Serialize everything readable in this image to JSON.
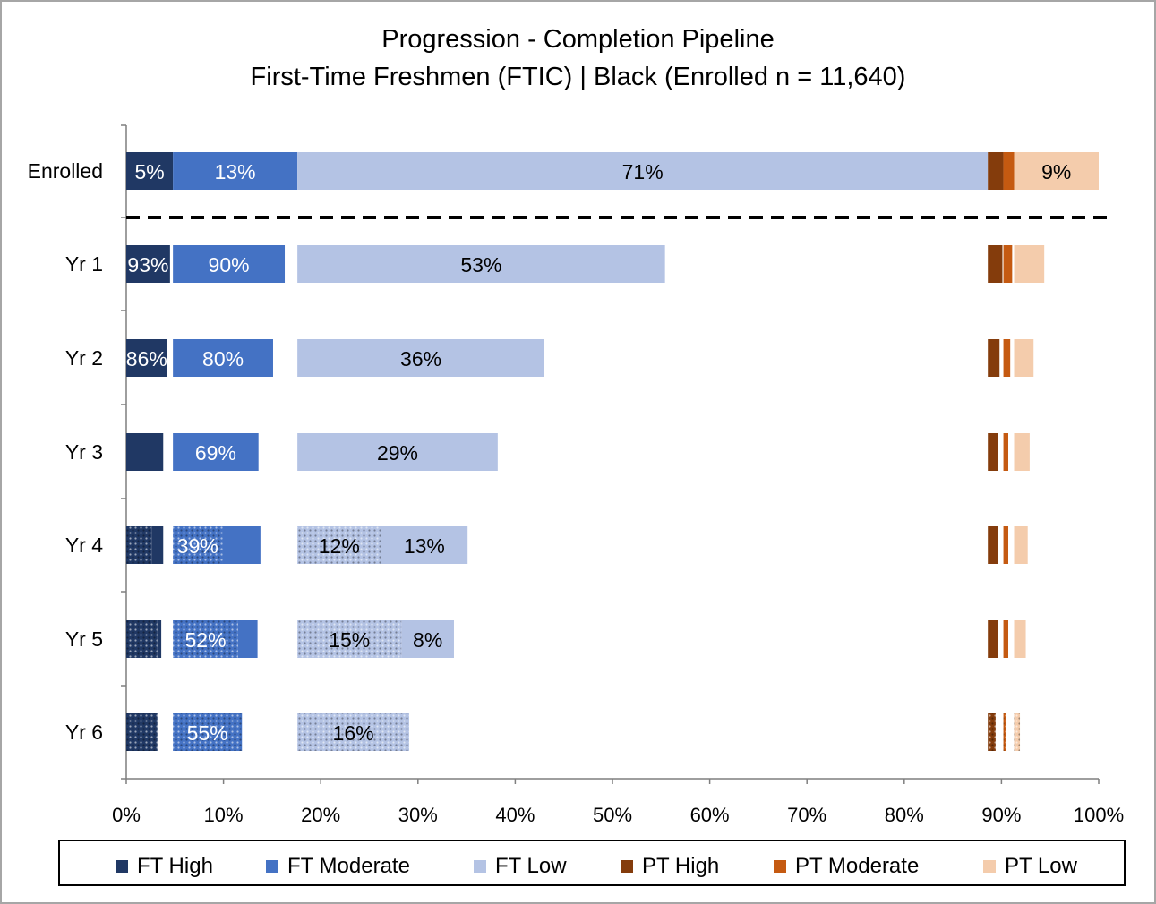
{
  "title": {
    "line1": "Progression - Completion Pipeline",
    "line2": "First-Time Freshmen (FTIC)  | Black (Enrolled n = 11,640)"
  },
  "colors": {
    "ft_high": "#203864",
    "ft_moderate": "#4472c4",
    "ft_low": "#b4c3e4",
    "pt_high": "#843c0c",
    "pt_moderate": "#c55a11",
    "pt_low": "#f4ccac"
  },
  "chart_data": {
    "type": "bar",
    "orientation": "horizontal",
    "stacked": true,
    "xlim": [
      0,
      100
    ],
    "x_ticks": [
      "0%",
      "10%",
      "20%",
      "30%",
      "40%",
      "50%",
      "60%",
      "70%",
      "80%",
      "90%",
      "100%"
    ],
    "categories": [
      "Enrolled",
      "Yr 1",
      "Yr 2",
      "Yr 3",
      "Yr 4",
      "Yr 5",
      "Yr 6"
    ],
    "legend_position": "bottom",
    "legend": [
      "FT High",
      "FT Moderate",
      "FT Low",
      "PT High",
      "PT Moderate",
      "PT Low"
    ],
    "groups": [
      {
        "name": "FT High",
        "start": 0,
        "width": 4.8
      },
      {
        "name": "FT Moderate",
        "start": 4.8,
        "width": 12.8
      },
      {
        "name": "FT Low",
        "start": 17.6,
        "width": 71.0
      },
      {
        "name": "PT High",
        "start": 88.6,
        "width": 1.6
      },
      {
        "name": "PT Moderate",
        "start": 90.2,
        "width": 1.1
      },
      {
        "name": "PT Low",
        "start": 91.3,
        "width": 8.7
      }
    ],
    "rows": [
      {
        "category": "Enrolled",
        "segments": [
          {
            "group": "FT High",
            "style": "solid",
            "length": 4.8,
            "label": "5%"
          },
          {
            "group": "FT Moderate",
            "style": "solid",
            "length": 12.8,
            "label": "13%"
          },
          {
            "group": "FT Low",
            "style": "solid",
            "length": 71.0,
            "label": "71%"
          },
          {
            "group": "PT High",
            "style": "solid",
            "length": 1.6,
            "label": ""
          },
          {
            "group": "PT Moderate",
            "style": "solid",
            "length": 1.1,
            "label": ""
          },
          {
            "group": "PT Low",
            "style": "solid",
            "length": 8.7,
            "label": "9%"
          }
        ]
      },
      {
        "category": "Yr 1",
        "segments": [
          {
            "group": "FT High",
            "style": "solid",
            "length": 4.5,
            "label": "93%"
          },
          {
            "group": "FT Moderate",
            "style": "solid",
            "length": 11.5,
            "label": "90%"
          },
          {
            "group": "FT Low",
            "style": "solid",
            "length": 37.8,
            "label": "53%"
          },
          {
            "group": "PT High",
            "style": "solid",
            "length": 1.5,
            "label": ""
          },
          {
            "group": "PT Moderate",
            "style": "solid",
            "length": 0.9,
            "label": ""
          },
          {
            "group": "PT Low",
            "style": "solid",
            "length": 3.1,
            "label": ""
          }
        ]
      },
      {
        "category": "Yr 2",
        "segments": [
          {
            "group": "FT High",
            "style": "solid",
            "length": 4.2,
            "label": "86%"
          },
          {
            "group": "FT Moderate",
            "style": "solid",
            "length": 10.3,
            "label": "80%"
          },
          {
            "group": "FT Low",
            "style": "solid",
            "length": 25.4,
            "label": "36%"
          },
          {
            "group": "PT High",
            "style": "solid",
            "length": 1.2,
            "label": ""
          },
          {
            "group": "PT Moderate",
            "style": "solid",
            "length": 0.7,
            "label": ""
          },
          {
            "group": "PT Low",
            "style": "solid",
            "length": 2.0,
            "label": ""
          }
        ]
      },
      {
        "category": "Yr 3",
        "segments": [
          {
            "group": "FT High",
            "style": "solid",
            "length": 3.8,
            "label": ""
          },
          {
            "group": "FT Moderate",
            "style": "solid",
            "length": 8.8,
            "label": "69%"
          },
          {
            "group": "FT Low",
            "style": "solid",
            "length": 20.6,
            "label": "29%"
          },
          {
            "group": "PT High",
            "style": "solid",
            "length": 1.0,
            "label": ""
          },
          {
            "group": "PT Moderate",
            "style": "solid",
            "length": 0.5,
            "label": ""
          },
          {
            "group": "PT Low",
            "style": "solid",
            "length": 1.6,
            "label": ""
          }
        ]
      },
      {
        "category": "Yr 4",
        "segments": [
          {
            "group": "FT High",
            "style": "hatched",
            "length": 2.6,
            "label": ""
          },
          {
            "group": "FT High",
            "style": "solid",
            "length": 1.2,
            "label": ""
          },
          {
            "group": "FT Moderate",
            "style": "hatched",
            "length": 5.1,
            "label": "39%"
          },
          {
            "group": "FT Moderate",
            "style": "solid",
            "length": 3.9,
            "label": ""
          },
          {
            "group": "FT Low",
            "style": "hatched",
            "length": 8.6,
            "label": "12%"
          },
          {
            "group": "FT Low",
            "style": "solid",
            "length": 8.9,
            "label": "13%"
          },
          {
            "group": "PT High",
            "style": "solid",
            "length": 1.0,
            "label": ""
          },
          {
            "group": "PT Moderate",
            "style": "solid",
            "length": 0.5,
            "label": ""
          },
          {
            "group": "PT Low",
            "style": "solid",
            "length": 1.4,
            "label": ""
          }
        ]
      },
      {
        "category": "Yr 5",
        "segments": [
          {
            "group": "FT High",
            "style": "hatched",
            "length": 3.2,
            "label": ""
          },
          {
            "group": "FT High",
            "style": "solid",
            "length": 0.4,
            "label": ""
          },
          {
            "group": "FT Moderate",
            "style": "hatched",
            "length": 6.7,
            "label": "52%"
          },
          {
            "group": "FT Moderate",
            "style": "solid",
            "length": 2.0,
            "label": ""
          },
          {
            "group": "FT Low",
            "style": "hatched",
            "length": 10.7,
            "label": "15%"
          },
          {
            "group": "FT Low",
            "style": "solid",
            "length": 5.4,
            "label": "8%"
          },
          {
            "group": "PT High",
            "style": "solid",
            "length": 1.0,
            "label": ""
          },
          {
            "group": "PT Moderate",
            "style": "solid",
            "length": 0.5,
            "label": ""
          },
          {
            "group": "PT Low",
            "style": "solid",
            "length": 1.2,
            "label": ""
          }
        ]
      },
      {
        "category": "Yr 6",
        "segments": [
          {
            "group": "FT High",
            "style": "hatched",
            "length": 3.2,
            "label": ""
          },
          {
            "group": "FT Moderate",
            "style": "hatched",
            "length": 7.1,
            "label": "55%"
          },
          {
            "group": "FT Low",
            "style": "hatched",
            "length": 11.5,
            "label": "16%"
          },
          {
            "group": "PT High",
            "style": "hatched",
            "length": 0.8,
            "label": ""
          },
          {
            "group": "PT Moderate",
            "style": "hatched",
            "length": 0.3,
            "label": ""
          },
          {
            "group": "PT Low",
            "style": "hatched",
            "length": 0.6,
            "label": ""
          }
        ]
      }
    ]
  }
}
